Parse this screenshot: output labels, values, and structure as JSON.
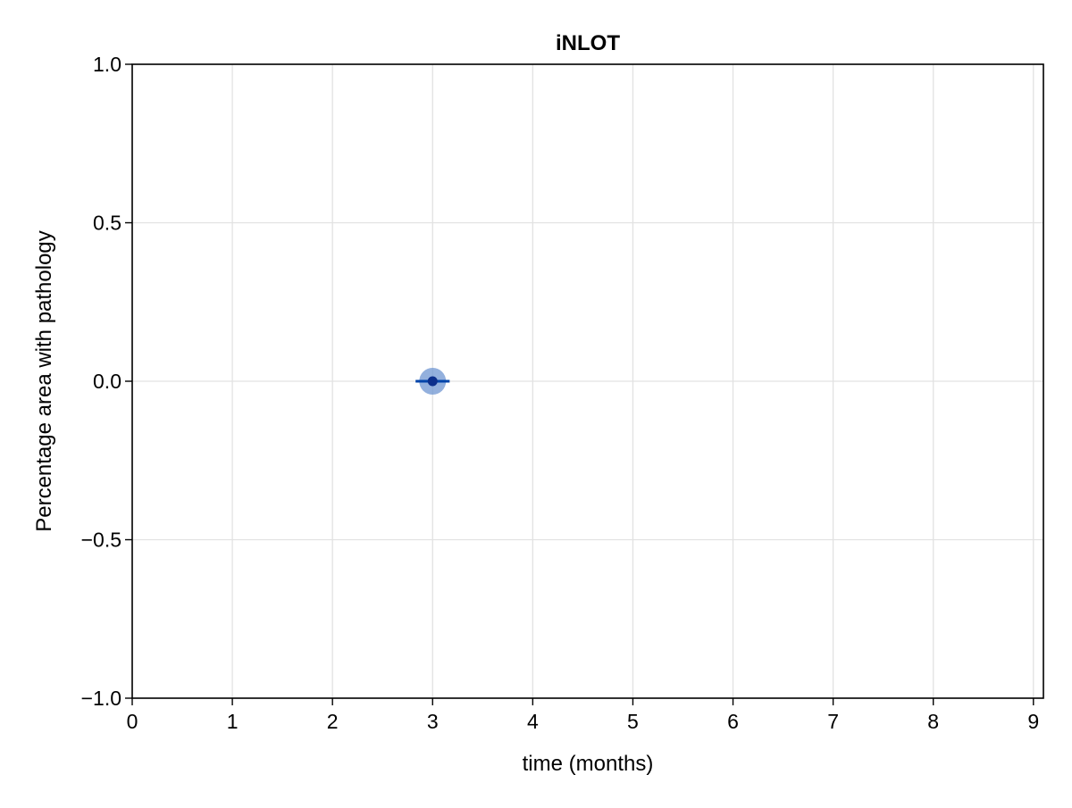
{
  "chart_data": {
    "type": "scatter",
    "title": "iNLOT",
    "xlabel": "time (months)",
    "ylabel": "Percentage area with pathology",
    "xlim": [
      0,
      9.1
    ],
    "ylim": [
      -1.0,
      1.0
    ],
    "xticks": [
      0,
      1,
      2,
      3,
      4,
      5,
      6,
      7,
      8,
      9
    ],
    "xtick_labels": [
      "0",
      "1",
      "2",
      "3",
      "4",
      "5",
      "6",
      "7",
      "8",
      "9"
    ],
    "yticks": [
      -1.0,
      -0.5,
      0.0,
      0.5,
      1.0
    ],
    "ytick_labels": [
      "−1.0",
      "−0.5",
      "0.0",
      "0.5",
      "1.0"
    ],
    "grid": true,
    "series": [
      {
        "points": [
          {
            "x": 3,
            "y": 0.0,
            "xerr_low": 2.83,
            "xerr_high": 3.17
          }
        ],
        "color": "#0044aa",
        "halo_color": "#6f96d1"
      }
    ],
    "colors": {
      "grid": "#e2e2e2",
      "axis": "#000000",
      "errorbar": "#0044aa",
      "point": "#0c2f8c"
    }
  }
}
